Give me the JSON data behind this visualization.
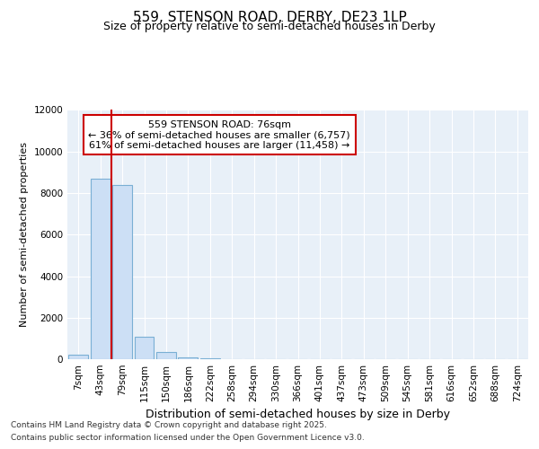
{
  "title_line1": "559, STENSON ROAD, DERBY, DE23 1LP",
  "title_line2": "Size of property relative to semi-detached houses in Derby",
  "xlabel": "Distribution of semi-detached houses by size in Derby",
  "ylabel": "Number of semi-detached properties",
  "annotation_line1": "559 STENSON ROAD: 76sqm",
  "annotation_line2": "← 36% of semi-detached houses are smaller (6,757)",
  "annotation_line3": "61% of semi-detached houses are larger (11,458) →",
  "footer_line1": "Contains HM Land Registry data © Crown copyright and database right 2025.",
  "footer_line2": "Contains public sector information licensed under the Open Government Licence v3.0.",
  "categories": [
    "7sqm",
    "43sqm",
    "79sqm",
    "115sqm",
    "150sqm",
    "186sqm",
    "222sqm",
    "258sqm",
    "294sqm",
    "330sqm",
    "366sqm",
    "401sqm",
    "437sqm",
    "473sqm",
    "509sqm",
    "545sqm",
    "581sqm",
    "616sqm",
    "652sqm",
    "688sqm",
    "724sqm"
  ],
  "values": [
    200,
    8700,
    8400,
    1100,
    350,
    100,
    50,
    0,
    0,
    0,
    0,
    0,
    0,
    0,
    0,
    0,
    0,
    0,
    0,
    0,
    0
  ],
  "bar_color": "#ccdff5",
  "bar_edge_color": "#7aafd4",
  "property_line_x": 1.5,
  "property_line_color": "#cc0000",
  "ylim": [
    0,
    12000
  ],
  "yticks": [
    0,
    2000,
    4000,
    6000,
    8000,
    10000,
    12000
  ],
  "bg_color": "#ffffff",
  "plot_bg_color": "#e8f0f8",
  "grid_color": "#ffffff",
  "annotation_box_facecolor": "#ffffff",
  "annotation_box_edgecolor": "#cc0000",
  "title1_fontsize": 11,
  "title2_fontsize": 9,
  "ylabel_fontsize": 8,
  "xlabel_fontsize": 9,
  "tick_fontsize": 7.5,
  "footer_fontsize": 6.5,
  "annotation_fontsize": 8
}
